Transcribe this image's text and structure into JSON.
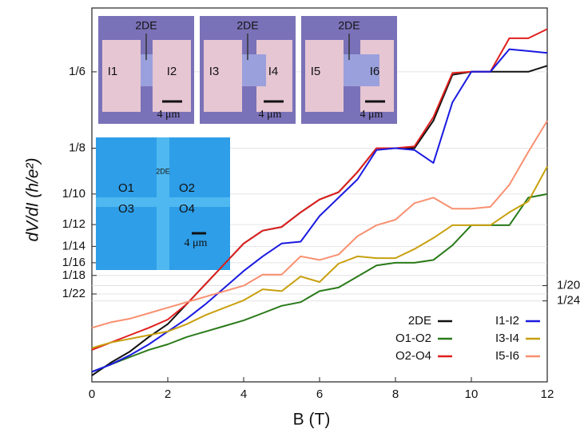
{
  "chart_data": {
    "type": "line",
    "xlabel": "B (T)",
    "ylabel": "dV/dI (h/e²)",
    "xlim": [
      0,
      12
    ],
    "xticks": [
      0,
      2,
      4,
      6,
      8,
      10,
      12
    ],
    "ylim": [
      -0.0025,
      0.2015
    ],
    "yticks": [
      {
        "value": 0.16667,
        "label": "1/6"
      },
      {
        "value": 0.125,
        "label": "1/8"
      },
      {
        "value": 0.1,
        "label": "1/10"
      },
      {
        "value": 0.08333,
        "label": "1/12"
      },
      {
        "value": 0.07143,
        "label": "1/14"
      },
      {
        "value": 0.0625,
        "label": "1/16"
      },
      {
        "value": 0.05556,
        "label": "1/18"
      },
      {
        "value": 0.04545,
        "label": "1/22"
      }
    ],
    "y2lim": [
      -0.0025,
      0.2015
    ],
    "y2ticks": [
      {
        "value": 0.05,
        "label": "1/20"
      },
      {
        "value": 0.04167,
        "label": "1/24"
      }
    ],
    "grid": true,
    "legend": "lower right",
    "x": [
      0,
      0.5,
      1,
      1.5,
      2,
      2.5,
      3,
      3.5,
      4,
      4.5,
      5,
      5.5,
      6,
      6.5,
      7,
      7.5,
      8,
      8.5,
      9,
      9.5,
      10,
      10.5,
      11,
      11.5,
      12
    ],
    "series": [
      {
        "name": "2DE",
        "color": "#111111",
        "values": [
          0.001,
          0.008,
          0.014,
          0.022,
          0.029,
          0.04,
          0.051,
          0.062,
          0.073,
          0.08,
          0.082,
          0.09,
          0.097,
          0.101,
          0.112,
          0.125,
          0.125,
          0.125,
          0.14,
          0.165,
          0.1667,
          0.1667,
          0.1667,
          0.1667,
          0.17
        ]
      },
      {
        "name": "O1-O2",
        "color": "#2a7a1a",
        "values": [
          0.003,
          0.007,
          0.011,
          0.015,
          0.018,
          0.022,
          0.025,
          0.028,
          0.031,
          0.035,
          0.039,
          0.041,
          0.047,
          0.049,
          0.055,
          0.061,
          0.0625,
          0.0625,
          0.064,
          0.072,
          0.083,
          0.083,
          0.083,
          0.098,
          0.1
        ]
      },
      {
        "name": "O2-O4",
        "color": "#e0201e",
        "values": [
          0.015,
          0.019,
          0.023,
          0.027,
          0.0315,
          0.04,
          0.051,
          0.062,
          0.073,
          0.08,
          0.082,
          0.09,
          0.097,
          0.101,
          0.112,
          0.125,
          0.125,
          0.126,
          0.142,
          0.166,
          0.1667,
          0.1667,
          0.185,
          0.185,
          0.19
        ]
      },
      {
        "name": "I1-I2",
        "color": "#1a1ae0",
        "values": [
          0.003,
          0.007,
          0.012,
          0.018,
          0.025,
          0.032,
          0.04,
          0.049,
          0.058,
          0.066,
          0.073,
          0.074,
          0.088,
          0.098,
          0.108,
          0.124,
          0.125,
          0.124,
          0.117,
          0.15,
          0.1667,
          0.1667,
          0.179,
          0.178,
          0.177
        ]
      },
      {
        "name": "I3-I4",
        "color": "#c8a010",
        "values": [
          0.016,
          0.019,
          0.021,
          0.023,
          0.025,
          0.029,
          0.034,
          0.038,
          0.042,
          0.048,
          0.047,
          0.055,
          0.052,
          0.062,
          0.066,
          0.065,
          0.065,
          0.07,
          0.076,
          0.083,
          0.083,
          0.083,
          0.09,
          0.096,
          0.115
        ]
      },
      {
        "name": "I5-I6",
        "color": "#f89070",
        "values": [
          0.027,
          0.03,
          0.032,
          0.035,
          0.038,
          0.041,
          0.044,
          0.047,
          0.05,
          0.056,
          0.056,
          0.066,
          0.064,
          0.067,
          0.077,
          0.083,
          0.086,
          0.095,
          0.098,
          0.092,
          0.092,
          0.093,
          0.105,
          0.123,
          0.14
        ]
      }
    ],
    "insets": [
      {
        "labels": [
          "2DE",
          "I1",
          "I2",
          "4 μm"
        ]
      },
      {
        "labels": [
          "2DE",
          "I3",
          "I4",
          "4 μm"
        ]
      },
      {
        "labels": [
          "2DE",
          "I5",
          "I6",
          "4 μm"
        ]
      },
      {
        "labels": [
          "2DE",
          "O1",
          "O2",
          "O3",
          "O4",
          "4 μm"
        ]
      }
    ]
  }
}
